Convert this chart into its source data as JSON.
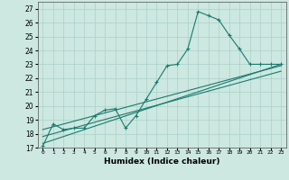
{
  "xlabel": "Humidex (Indice chaleur)",
  "bg_color": "#cce8e0",
  "grid_color": "#aad0c8",
  "line_color": "#1a7a6e",
  "xlim": [
    -0.5,
    23.5
  ],
  "ylim": [
    17,
    27.5
  ],
  "xticks": [
    0,
    1,
    2,
    3,
    4,
    5,
    6,
    7,
    8,
    9,
    10,
    11,
    12,
    13,
    14,
    15,
    16,
    17,
    18,
    19,
    20,
    21,
    22,
    23
  ],
  "yticks": [
    17,
    18,
    19,
    20,
    21,
    22,
    23,
    24,
    25,
    26,
    27
  ],
  "curve1_x": [
    0,
    1,
    2,
    3,
    4,
    5,
    6,
    7,
    8,
    9,
    10,
    11,
    12,
    13,
    14,
    15,
    16,
    17,
    18,
    19,
    20,
    21,
    22,
    23
  ],
  "curve1_y": [
    17.1,
    18.7,
    18.3,
    18.4,
    18.4,
    19.3,
    19.7,
    19.8,
    18.4,
    19.3,
    20.5,
    21.7,
    22.9,
    23.0,
    24.1,
    26.8,
    26.5,
    26.2,
    25.1,
    24.1,
    23.0,
    23.0,
    23.0,
    23.0
  ],
  "curve2_x": [
    0,
    23
  ],
  "curve2_y": [
    17.3,
    23.0
  ],
  "curve3_x": [
    0,
    23
  ],
  "curve3_y": [
    17.8,
    22.5
  ],
  "curve4_x": [
    0,
    23
  ],
  "curve4_y": [
    18.3,
    22.9
  ]
}
